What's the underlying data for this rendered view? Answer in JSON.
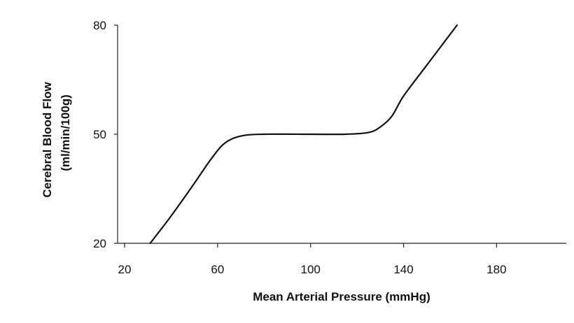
{
  "chart_data": {
    "type": "line",
    "title": "",
    "xlabel": "Mean Arterial Pressure (mmHg)",
    "ylabel_line1": "Cerebral Blood Flow",
    "ylabel_line2": "(ml/min/100g)",
    "xlim": [
      20,
      210
    ],
    "ylim": [
      20,
      80
    ],
    "x_ticks": [
      20,
      60,
      100,
      140,
      180
    ],
    "y_ticks": [
      20,
      50,
      80
    ],
    "x_tick_labels": [
      "20",
      "60",
      "100",
      "140",
      "180"
    ],
    "y_tick_labels": [
      "20",
      "50",
      "80"
    ],
    "grid": false,
    "legend": "none",
    "line_color": "#111111",
    "series": [
      {
        "x": [
          31,
          40,
          50,
          57,
          63,
          70,
          80,
          100,
          115,
          125,
          130,
          135,
          140,
          150,
          163
        ],
        "y": [
          20,
          27.5,
          36.5,
          43,
          47.5,
          49.5,
          50,
          50,
          50,
          50.5,
          52,
          55,
          60.5,
          69,
          80
        ]
      }
    ]
  }
}
